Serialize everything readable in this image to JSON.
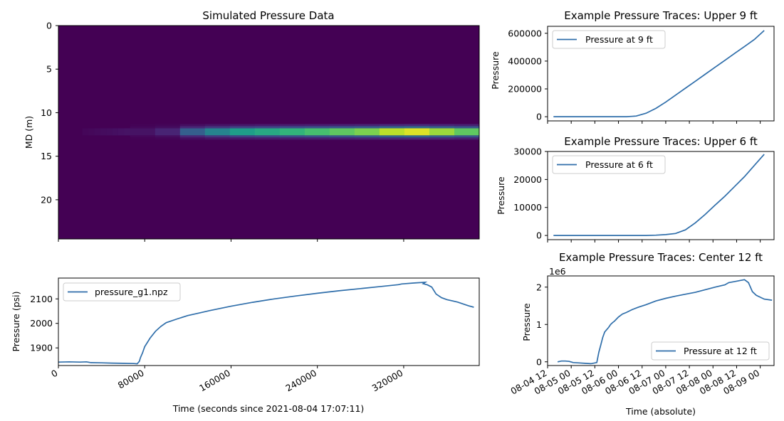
{
  "chart_data": [
    {
      "type": "heatmap",
      "title": "Simulated Pressure Data",
      "ylabel": "MD (m)",
      "yticks": [
        "0",
        "5",
        "10",
        "15",
        "20"
      ],
      "ylim": [
        24.5,
        0
      ],
      "x_range_seconds": [
        0,
        440000
      ],
      "colormap": "viridis",
      "band_depth_m": 12.2,
      "band_start_seconds": 75000,
      "band_intensity_levels": [
        0.05,
        0.1,
        0.3,
        0.45,
        0.55,
        0.6,
        0.65,
        0.7,
        0.75,
        0.8,
        0.9,
        0.95,
        0.85,
        0.75
      ]
    },
    {
      "type": "line",
      "xlabel": "Time (seconds since 2021-08-04 17:07:11)",
      "ylabel": "Pressure (psi)",
      "xticks": [
        "0",
        "80000",
        "160000",
        "240000",
        "320000"
      ],
      "yticks": [
        "1900",
        "2000",
        "2100"
      ],
      "xlim": [
        0,
        390000
      ],
      "ylim": [
        1828,
        2185
      ],
      "legend_position": "upper-left",
      "series": [
        {
          "name": "pressure_g1.npz",
          "x": [
            0,
            10000,
            20000,
            26000,
            30000,
            40000,
            50000,
            60000,
            70000,
            73000,
            75000,
            76000,
            78000,
            80000,
            85000,
            90000,
            95000,
            100000,
            110000,
            120000,
            130000,
            140000,
            160000,
            180000,
            200000,
            220000,
            240000,
            260000,
            280000,
            300000,
            315000,
            318000,
            330000,
            340000,
            338000,
            342000,
            346000,
            350000,
            355000,
            360000,
            370000,
            380000,
            385000
          ],
          "y": [
            1842,
            1843,
            1842,
            1843,
            1840,
            1839,
            1838,
            1837,
            1836,
            1835,
            1845,
            1860,
            1880,
            1905,
            1940,
            1968,
            1988,
            2003,
            2018,
            2032,
            2042,
            2052,
            2070,
            2086,
            2100,
            2112,
            2123,
            2133,
            2142,
            2151,
            2158,
            2161,
            2165,
            2168,
            2162,
            2157,
            2148,
            2120,
            2105,
            2097,
            2087,
            2072,
            2066
          ]
        }
      ]
    },
    {
      "type": "line",
      "title": "Example Pressure Traces: Upper 9 ft",
      "ylabel": "Pressure",
      "yticks": [
        "0",
        "200000",
        "400000",
        "600000"
      ],
      "ylim": [
        -30000,
        650000
      ],
      "x_range_hours": [
        0,
        115
      ],
      "legend_position": "upper-left",
      "series": [
        {
          "name": "Pressure at 9 ft",
          "x": [
            3,
            20,
            40,
            45,
            50,
            55,
            60,
            65,
            70,
            75,
            80,
            85,
            90,
            95,
            100,
            105,
            110
          ],
          "y": [
            0,
            0,
            0,
            5000,
            25000,
            60000,
            105000,
            155000,
            205000,
            255000,
            305000,
            355000,
            405000,
            455000,
            505000,
            555000,
            620000
          ]
        }
      ]
    },
    {
      "type": "line",
      "title": "Example Pressure Traces: Upper 6 ft",
      "ylabel": "Pressure",
      "yticks": [
        "0",
        "10000",
        "20000",
        "30000"
      ],
      "ylim": [
        -1500,
        30000
      ],
      "x_range_hours": [
        0,
        115
      ],
      "legend_position": "upper-left",
      "series": [
        {
          "name": "Pressure at 6 ft",
          "x": [
            3,
            30,
            50,
            55,
            60,
            65,
            70,
            75,
            80,
            85,
            90,
            95,
            100,
            105,
            110
          ],
          "y": [
            0,
            0,
            0,
            100,
            300,
            700,
            2000,
            4500,
            7500,
            10800,
            14000,
            17500,
            21000,
            25000,
            29000
          ]
        }
      ]
    },
    {
      "type": "line",
      "title": "Example Pressure Traces: Center 12 ft",
      "xlabel": "Time (absolute)",
      "ylabel": "Pressure",
      "offset_label": "1e6",
      "yticks": [
        "0",
        "1",
        "2"
      ],
      "ylim": [
        -0.1,
        2.3
      ],
      "xticks": [
        "08-04 12",
        "08-05 00",
        "08-05 12",
        "08-06 00",
        "08-06 12",
        "08-07 00",
        "08-07 12",
        "08-08 00",
        "08-08 12",
        "08-09 00"
      ],
      "legend_position": "lower-right",
      "series": [
        {
          "name": "Pressure at 12 ft",
          "x": [
            5.1,
            7,
            9,
            11,
            13,
            16,
            19,
            22,
            25,
            26,
            27,
            28,
            29,
            30,
            31,
            32,
            33,
            34,
            36,
            38,
            40,
            43,
            46,
            50,
            55,
            60,
            65,
            70,
            75,
            80,
            85,
            90,
            92,
            95,
            98,
            100,
            102,
            104,
            106,
            110,
            114
          ],
          "y": [
            0,
            0.02,
            0.02,
            0.01,
            -0.02,
            -0.03,
            -0.04,
            -0.05,
            -0.02,
            0.25,
            0.45,
            0.65,
            0.8,
            0.86,
            0.92,
            1.0,
            1.05,
            1.09,
            1.2,
            1.28,
            1.32,
            1.4,
            1.46,
            1.53,
            1.63,
            1.7,
            1.76,
            1.81,
            1.86,
            1.93,
            2.0,
            2.06,
            2.12,
            2.15,
            2.18,
            2.2,
            2.12,
            1.88,
            1.78,
            1.68,
            1.65
          ]
        }
      ]
    }
  ]
}
